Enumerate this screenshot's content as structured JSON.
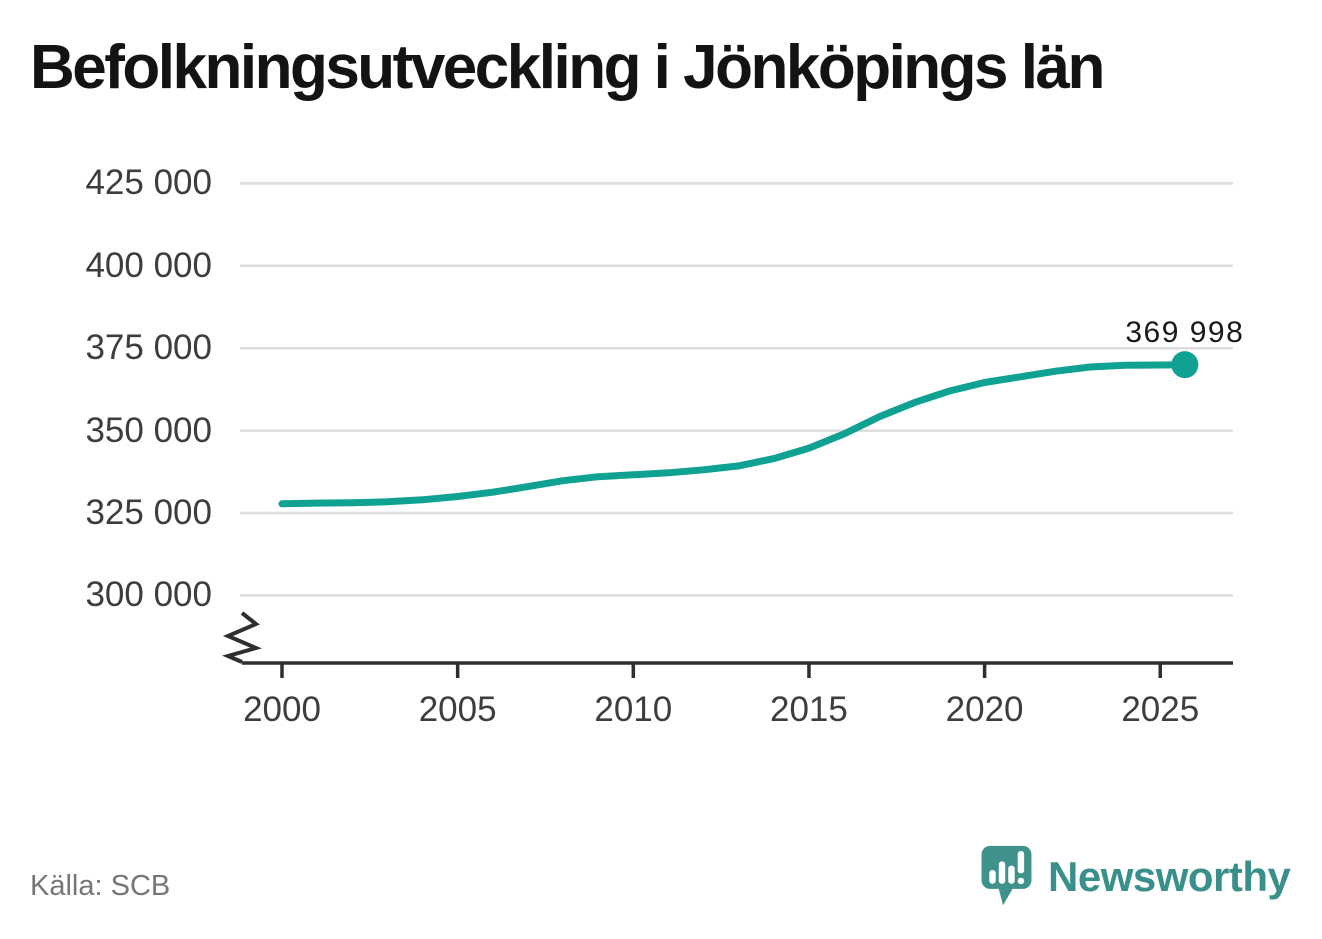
{
  "title": "Befolkningsutveckling i Jönköpings län",
  "source": {
    "text": "Källa: SCB"
  },
  "branding": {
    "name": "Newsworthy",
    "icon": "chart-speech-bubble-icon",
    "color": "#39908a"
  },
  "colors": {
    "line": "#0fa192",
    "marker": "#0fa192",
    "grid": "#dcdcdc",
    "axis": "#2e2e2e",
    "tick_label": "#3d3d3d",
    "annotation": "#1a1a1a",
    "source_text": "#767676",
    "background": "#ffffff"
  },
  "chart_data": {
    "type": "line",
    "title": "Befolkningsutveckling i Jönköpings län",
    "xlabel": "",
    "ylabel": "",
    "grid": "horizontal",
    "legend": "none",
    "axis_break_bottom_left": true,
    "ylim": [
      300000,
      425000
    ],
    "y_tick_labels": [
      "425 000",
      "400 000",
      "375 000",
      "350 000",
      "325 000",
      "300 000"
    ],
    "y_tick_values": [
      425000,
      400000,
      375000,
      350000,
      325000,
      300000
    ],
    "x_tick_labels": [
      "2000",
      "2005",
      "2010",
      "2015",
      "2020",
      "2025"
    ],
    "x_tick_values": [
      2000,
      2005,
      2010,
      2015,
      2020,
      2025
    ],
    "x": [
      2000,
      2001,
      2002,
      2003,
      2004,
      2005,
      2006,
      2007,
      2008,
      2009,
      2010,
      2011,
      2012,
      2013,
      2014,
      2015,
      2016,
      2017,
      2018,
      2019,
      2020,
      2021,
      2022,
      2023,
      2024,
      2025,
      2025.7
    ],
    "values": [
      327800,
      328000,
      328100,
      328400,
      329000,
      330000,
      331300,
      333000,
      334800,
      336000,
      336600,
      337200,
      338100,
      339300,
      341500,
      344700,
      349000,
      354200,
      358500,
      362000,
      364600,
      366300,
      368000,
      369300,
      369800,
      369900,
      369998
    ],
    "end_label": "369 998",
    "end_value": 369998
  }
}
